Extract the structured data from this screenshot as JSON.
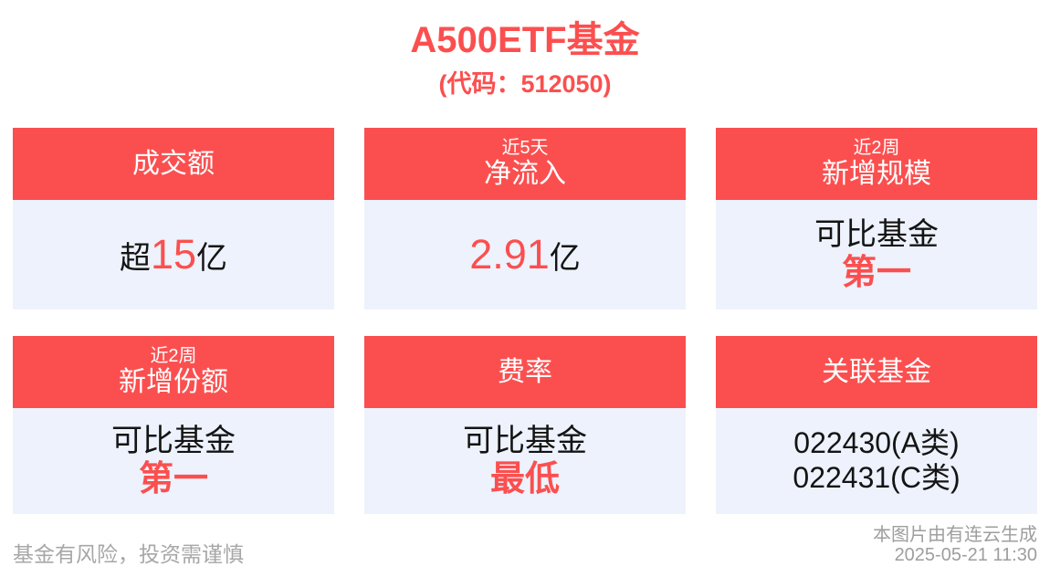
{
  "title": "A500ETF基金",
  "subtitle": "(代码：512050)",
  "colors": {
    "accent": "#fb4f4f",
    "card_body_bg": "#edf2fc",
    "text_dark": "#141414",
    "text_muted": "#a7a7a7"
  },
  "cards": [
    {
      "name": "turnover",
      "header": [
        "成交额"
      ],
      "lines": [
        [
          {
            "t": "超",
            "c": "dark"
          },
          {
            "t": "15",
            "c": "accent-num"
          },
          {
            "t": "亿",
            "c": "dark"
          }
        ]
      ]
    },
    {
      "name": "net-inflow-5d",
      "header": [
        "近5天",
        "净流入"
      ],
      "lines": [
        [
          {
            "t": "2.91",
            "c": "accent-num"
          },
          {
            "t": "亿",
            "c": "dark"
          }
        ]
      ]
    },
    {
      "name": "new-scale-2w",
      "header": [
        "近2周",
        "新增规模"
      ],
      "lines": [
        [
          {
            "t": "可比基金",
            "c": "dark"
          }
        ],
        [
          {
            "t": "第一",
            "c": "accent"
          }
        ]
      ]
    },
    {
      "name": "new-shares-2w",
      "header": [
        "近2周",
        "新增份额"
      ],
      "lines": [
        [
          {
            "t": "可比基金",
            "c": "dark"
          }
        ],
        [
          {
            "t": "第一",
            "c": "accent"
          }
        ]
      ]
    },
    {
      "name": "fee-rate",
      "header": [
        "费率"
      ],
      "lines": [
        [
          {
            "t": "可比基金",
            "c": "dark"
          }
        ],
        [
          {
            "t": "最低",
            "c": "accent"
          }
        ]
      ]
    },
    {
      "name": "related-funds",
      "header": [
        "关联基金"
      ],
      "lines": [
        [
          {
            "t": "022430(A类)",
            "c": "code"
          }
        ],
        [
          {
            "t": "022431(C类)",
            "c": "code"
          }
        ]
      ]
    }
  ],
  "footer": {
    "disclaimer": "基金有风险，投资需谨慎",
    "source": "本图片由有连云生成",
    "timestamp": "2025-05-21 11:30"
  },
  "chart_data": {
    "type": "table",
    "title": "A500ETF基金",
    "subtitle": "(代码：512050)",
    "metrics": [
      {
        "label": "成交额",
        "period": "",
        "value": "超15亿"
      },
      {
        "label": "净流入",
        "period": "近5天",
        "value": "2.91亿"
      },
      {
        "label": "新增规模",
        "period": "近2周",
        "value": "可比基金第一"
      },
      {
        "label": "新增份额",
        "period": "近2周",
        "value": "可比基金第一"
      },
      {
        "label": "费率",
        "period": "",
        "value": "可比基金最低"
      },
      {
        "label": "关联基金",
        "period": "",
        "value": "022430(A类)、022431(C类)"
      }
    ]
  }
}
